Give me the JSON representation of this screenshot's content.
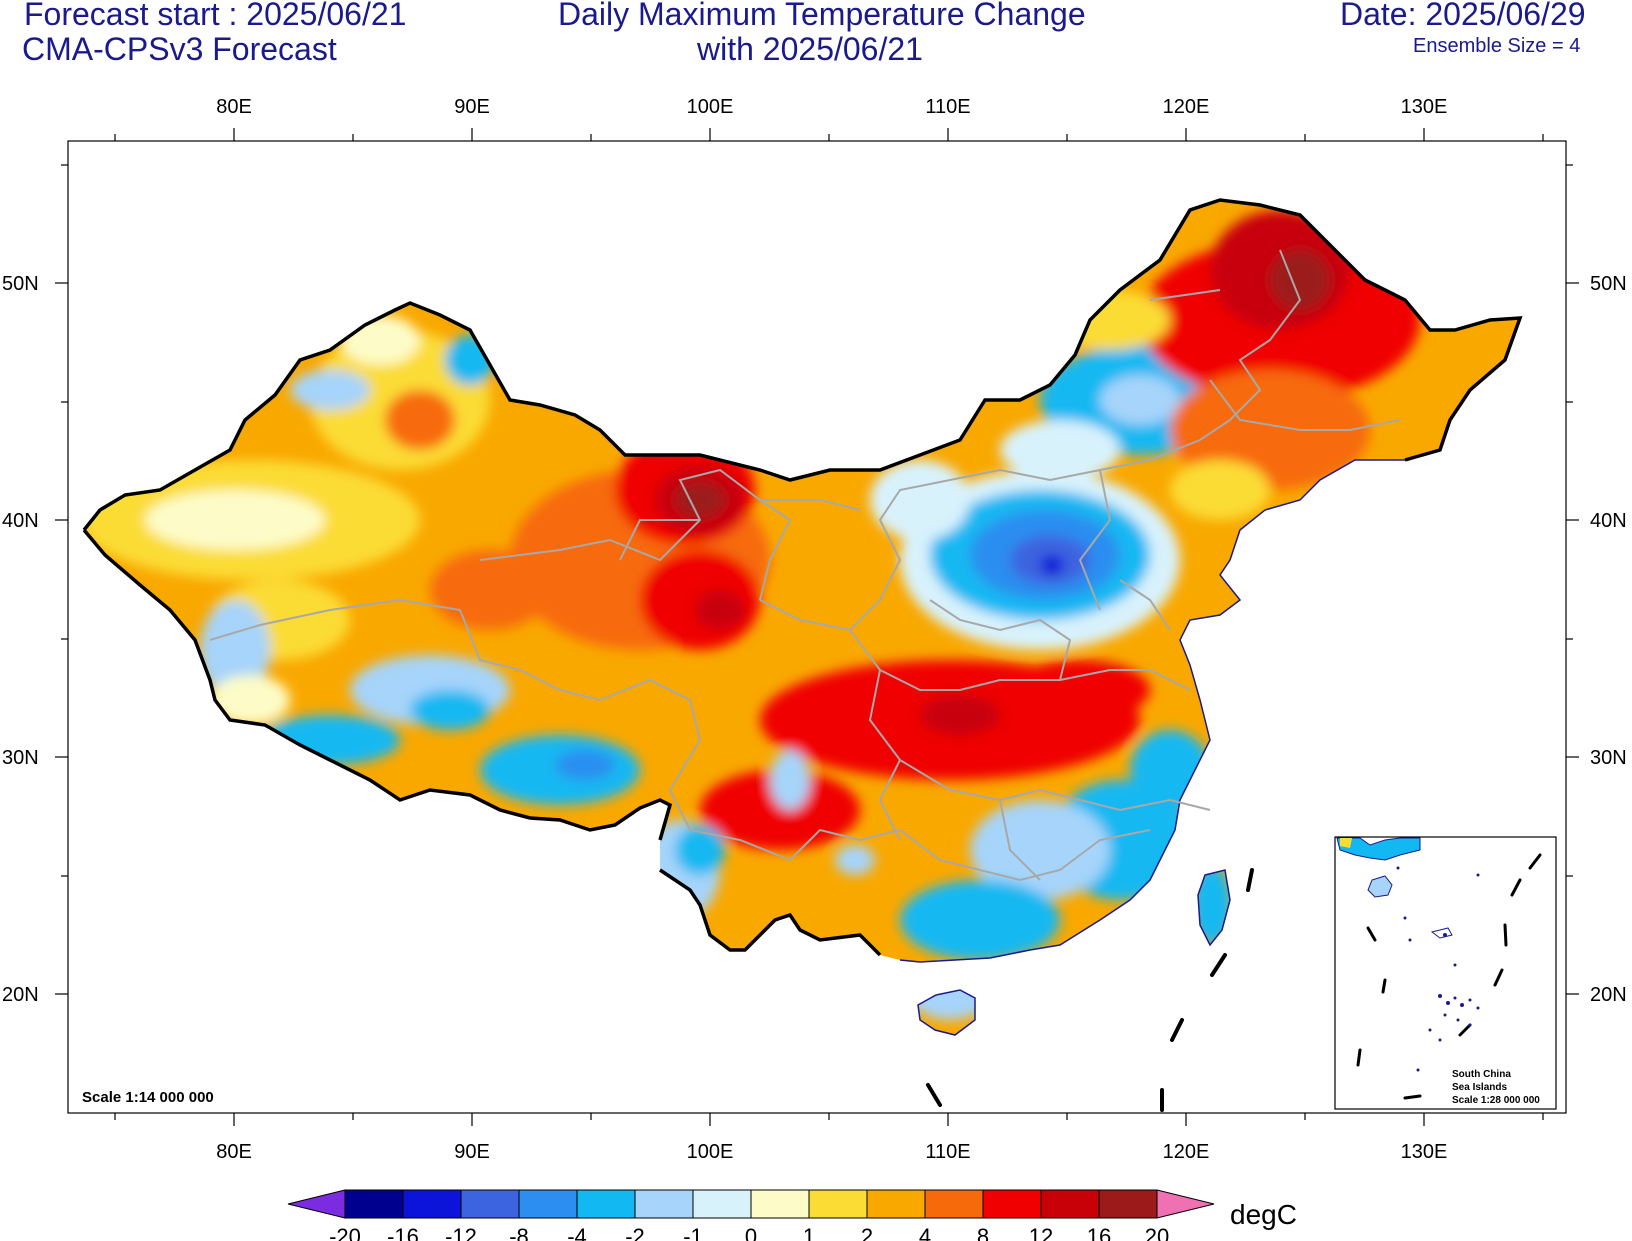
{
  "header": {
    "forecast_start": "Forecast start : 2025/06/21",
    "model": "CMA-CPSv3 Forecast",
    "title_line1": "Daily Maximum Temperature Change",
    "title_line2": "with 2025/06/21",
    "date": "Date: 2025/06/29",
    "ensemble": "Ensemble Size = 4"
  },
  "axes": {
    "lon_labels": [
      "80E",
      "90E",
      "100E",
      "110E",
      "120E",
      "130E"
    ],
    "lat_labels": [
      "50N",
      "40N",
      "30N",
      "20N"
    ]
  },
  "scale_text": "Scale 1:14 000 000",
  "inset": {
    "line1": "South China",
    "line2": "Sea Islands",
    "line3": "Scale 1:28 000 000"
  },
  "colorbar": {
    "unit": "degC",
    "labels": [
      "-20",
      "-16",
      "-12",
      "-8",
      "-4",
      "-2",
      "-1",
      "0",
      "1",
      "2",
      "4",
      "8",
      "12",
      "16",
      "20"
    ],
    "colors": [
      "#7b2be0",
      "#00008f",
      "#0b14d8",
      "#3d64e0",
      "#2b8ef0",
      "#12b8f2",
      "#a6d4fa",
      "#d8f2fc",
      "#fdfcc8",
      "#fbdc34",
      "#f9a800",
      "#f76a0c",
      "#f00000",
      "#c80008",
      "#9c1a1a",
      "#f070b4"
    ]
  },
  "chart_data": {
    "type": "heatmap",
    "variable": "Daily Maximum Temperature Change",
    "unit": "degC",
    "lon_range": [
      75,
      135
    ],
    "lat_range": [
      15,
      55
    ],
    "levels": [
      -20,
      -16,
      -12,
      -8,
      -4,
      -2,
      -1,
      0,
      1,
      2,
      4,
      8,
      12,
      16,
      20
    ]
  }
}
